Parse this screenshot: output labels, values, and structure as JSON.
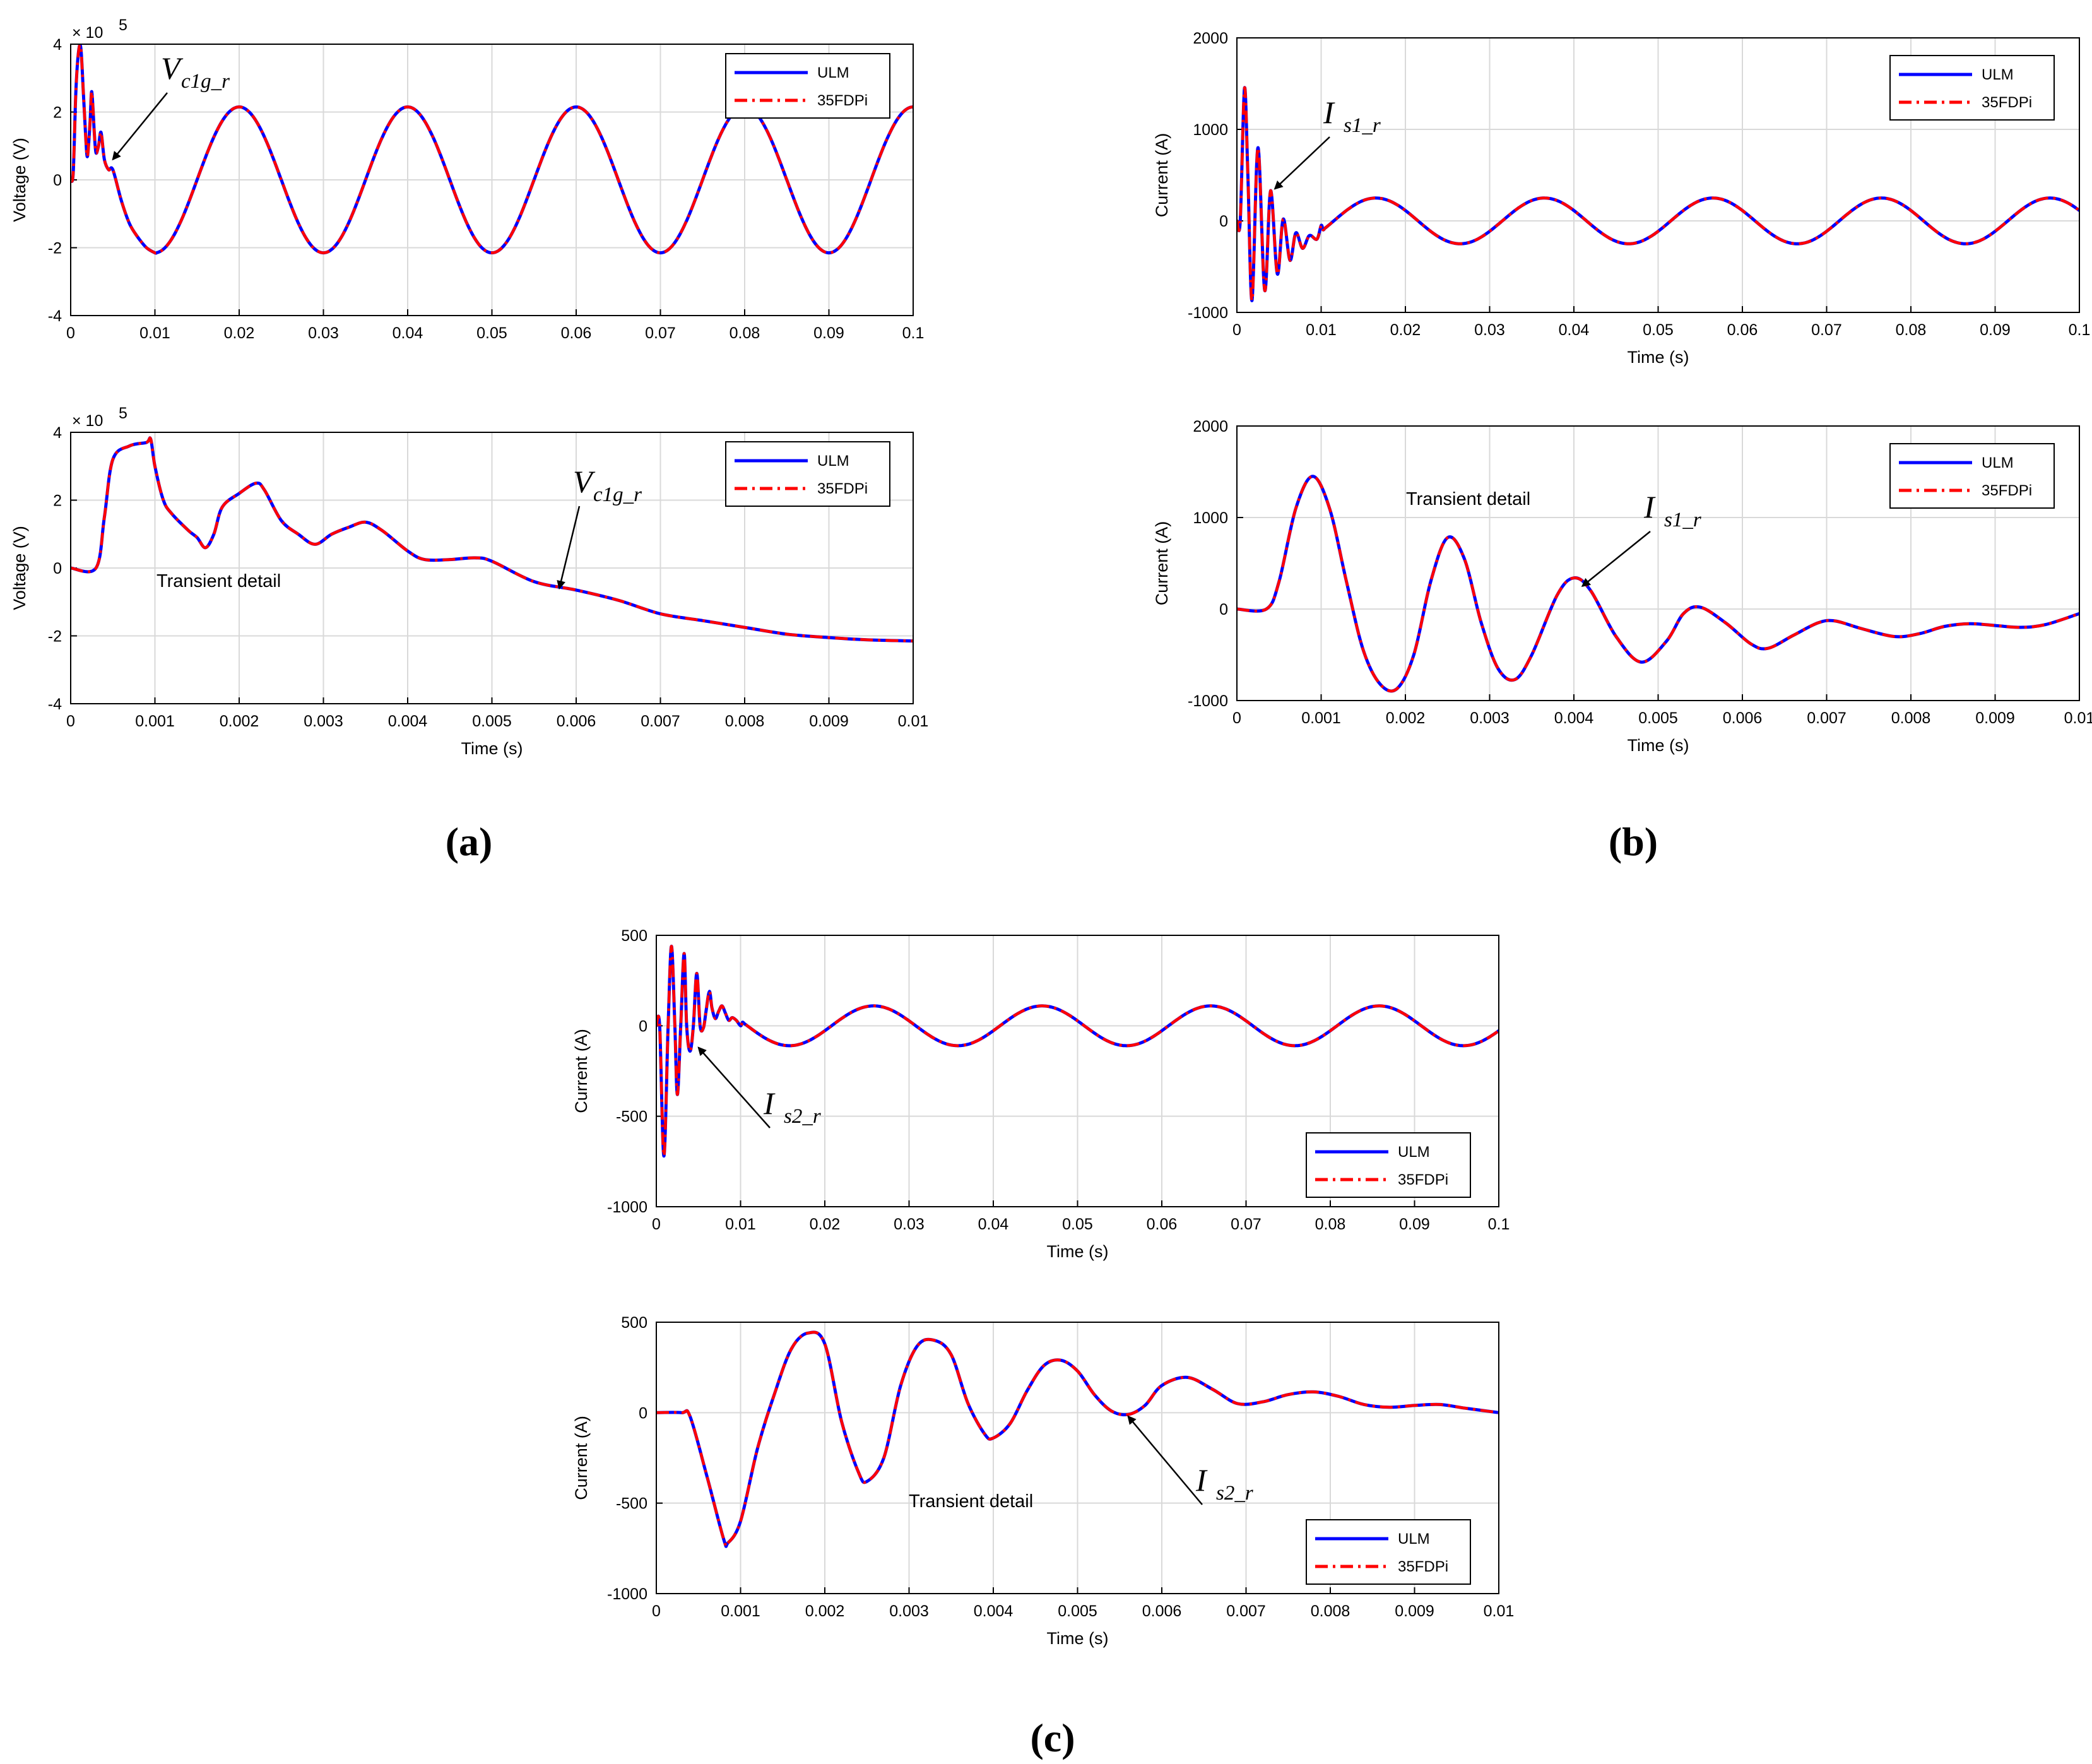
{
  "figure": {
    "panel_labels": [
      "(a)",
      "(b)",
      "(c)"
    ]
  },
  "colors": {
    "ulm": "#0000ff",
    "fdpi": "#ff0000",
    "grid": "#d9d9d9",
    "axis": "#000000"
  },
  "legend": {
    "series": [
      "ULM",
      "35FDPi"
    ]
  },
  "chart_data": [
    {
      "id": "a-top",
      "type": "line",
      "panel": "(a)",
      "title": "",
      "xlabel": "",
      "ylabel": "Voltage (V)",
      "y_exponent": "5",
      "xlim": [
        0,
        0.1
      ],
      "ylim": [
        -4,
        4
      ],
      "xticks": [
        "0",
        "0.01",
        "0.02",
        "0.03",
        "0.04",
        "0.05",
        "0.06",
        "0.07",
        "0.08",
        "0.09",
        "0.1"
      ],
      "yticks": [
        "-4",
        "-2",
        "0",
        "2",
        "4"
      ],
      "series": [
        {
          "name": "ULM",
          "style": "solid",
          "points": [
            [
              0,
              0
            ],
            [
              0.0003,
              0.2
            ],
            [
              0.0006,
              2.5
            ],
            [
              0.0009,
              3.7
            ],
            [
              0.0012,
              3.9
            ],
            [
              0.0015,
              2.6
            ],
            [
              0.0018,
              1.2
            ],
            [
              0.002,
              0.7
            ],
            [
              0.0023,
              1.7
            ],
            [
              0.0025,
              2.6
            ],
            [
              0.0028,
              1.4
            ],
            [
              0.003,
              0.8
            ],
            [
              0.0033,
              1.0
            ],
            [
              0.0036,
              1.4
            ],
            [
              0.004,
              0.6
            ],
            [
              0.0045,
              0.3
            ],
            [
              0.005,
              0.3
            ],
            [
              0.006,
              -0.6
            ],
            [
              0.007,
              -1.3
            ],
            [
              0.008,
              -1.7
            ],
            [
              0.009,
              -2.0
            ],
            [
              0.01,
              -2.15
            ]
          ],
          "sine": {
            "from": 0.01,
            "to": 0.1,
            "amp": 2.15,
            "period": 0.02,
            "phase_at": 0.02,
            "peak_at": 0.02
          }
        },
        {
          "name": "35FDPi",
          "style": "dashdot",
          "same_as": "ULM"
        }
      ],
      "annotation": {
        "main": "V",
        "sub": "c1g_r",
        "x": 0.005,
        "y": 0.6
      }
    },
    {
      "id": "a-bottom",
      "type": "line",
      "panel": "(a)",
      "title": "",
      "xlabel": "Time (s)",
      "ylabel": "Voltage (V)",
      "y_exponent": "5",
      "xlim": [
        0,
        0.01
      ],
      "ylim": [
        -4,
        4
      ],
      "xticks": [
        "0",
        "0.001",
        "0.002",
        "0.003",
        "0.004",
        "0.005",
        "0.006",
        "0.007",
        "0.008",
        "0.009",
        "0.01"
      ],
      "yticks": [
        "-4",
        "-2",
        "0",
        "2",
        "4"
      ],
      "series": [
        {
          "name": "ULM",
          "style": "solid",
          "points": [
            [
              0,
              0
            ],
            [
              0.0003,
              0
            ],
            [
              0.0004,
              1.5
            ],
            [
              0.0005,
              3.2
            ],
            [
              0.0007,
              3.6
            ],
            [
              0.0009,
              3.7
            ],
            [
              0.00095,
              3.8
            ],
            [
              0.001,
              3.0
            ],
            [
              0.0011,
              2.0
            ],
            [
              0.0012,
              1.6
            ],
            [
              0.0014,
              1.1
            ],
            [
              0.0015,
              0.9
            ],
            [
              0.0016,
              0.6
            ],
            [
              0.0017,
              1.0
            ],
            [
              0.0018,
              1.8
            ],
            [
              0.002,
              2.2
            ],
            [
              0.0022,
              2.5
            ],
            [
              0.0023,
              2.3
            ],
            [
              0.0025,
              1.4
            ],
            [
              0.0027,
              1.0
            ],
            [
              0.0029,
              0.7
            ],
            [
              0.0031,
              1.0
            ],
            [
              0.0033,
              1.2
            ],
            [
              0.0035,
              1.35
            ],
            [
              0.0037,
              1.1
            ],
            [
              0.004,
              0.5
            ],
            [
              0.0042,
              0.25
            ],
            [
              0.0045,
              0.25
            ],
            [
              0.0048,
              0.3
            ],
            [
              0.005,
              0.2
            ],
            [
              0.0055,
              -0.4
            ],
            [
              0.006,
              -0.65
            ],
            [
              0.0065,
              -0.95
            ],
            [
              0.007,
              -1.35
            ],
            [
              0.0075,
              -1.55
            ],
            [
              0.008,
              -1.75
            ],
            [
              0.0085,
              -1.95
            ],
            [
              0.009,
              -2.05
            ],
            [
              0.0095,
              -2.12
            ],
            [
              0.01,
              -2.15
            ]
          ]
        },
        {
          "name": "35FDPi",
          "style": "dashdot",
          "same_as": "ULM"
        }
      ],
      "annotation": {
        "main": "V",
        "sub": "c1g_r",
        "x": 0.0058,
        "y": -0.6
      },
      "note": "Transient detail"
    },
    {
      "id": "b-top",
      "type": "line",
      "panel": "(b)",
      "title": "",
      "xlabel": "Time (s)",
      "ylabel": "Current (A)",
      "xlim": [
        0,
        0.1
      ],
      "ylim": [
        -1000,
        2000
      ],
      "xticks": [
        "0",
        "0.01",
        "0.02",
        "0.03",
        "0.04",
        "0.05",
        "0.06",
        "0.07",
        "0.08",
        "0.09",
        "0.1"
      ],
      "yticks": [
        "-1000",
        "0",
        "1000",
        "2000"
      ],
      "series": [
        {
          "name": "ULM",
          "style": "solid",
          "points": [
            [
              0,
              0
            ],
            [
              0.0004,
              0
            ],
            [
              0.0009,
              1450
            ],
            [
              0.0013,
              500
            ],
            [
              0.0018,
              -870
            ],
            [
              0.0025,
              800
            ],
            [
              0.0033,
              -760
            ],
            [
              0.004,
              330
            ],
            [
              0.0048,
              -580
            ],
            [
              0.0055,
              20
            ],
            [
              0.0063,
              -430
            ],
            [
              0.007,
              -130
            ],
            [
              0.0078,
              -300
            ],
            [
              0.0086,
              -160
            ],
            [
              0.0095,
              -200
            ],
            [
              0.01,
              -50
            ]
          ],
          "sine": {
            "from": 0.01,
            "to": 0.1,
            "amp": 250,
            "period": 0.02,
            "peak_at": 0.0165
          }
        },
        {
          "name": "35FDPi",
          "style": "dashdot",
          "same_as": "ULM"
        }
      ],
      "annotation": {
        "main": "I",
        "sub": "s1_r",
        "x": 0.0045,
        "y": 350
      }
    },
    {
      "id": "b-bottom",
      "type": "line",
      "panel": "(b)",
      "title": "",
      "xlabel": "Time (s)",
      "ylabel": "Current (A)",
      "xlim": [
        0,
        0.01
      ],
      "ylim": [
        -1000,
        2000
      ],
      "xticks": [
        "0",
        "0.001",
        "0.002",
        "0.003",
        "0.004",
        "0.005",
        "0.006",
        "0.007",
        "0.008",
        "0.009",
        "0.01"
      ],
      "yticks": [
        "-1000",
        "0",
        "1000",
        "2000"
      ],
      "series": [
        {
          "name": "ULM",
          "style": "solid",
          "points": [
            [
              0,
              0
            ],
            [
              0.00035,
              0
            ],
            [
              0.0005,
              300
            ],
            [
              0.0007,
              1100
            ],
            [
              0.0009,
              1450
            ],
            [
              0.0011,
              1100
            ],
            [
              0.0013,
              300
            ],
            [
              0.0015,
              -450
            ],
            [
              0.0017,
              -820
            ],
            [
              0.0019,
              -870
            ],
            [
              0.0021,
              -500
            ],
            [
              0.0023,
              300
            ],
            [
              0.0025,
              780
            ],
            [
              0.0027,
              550
            ],
            [
              0.0029,
              -150
            ],
            [
              0.0031,
              -650
            ],
            [
              0.0033,
              -770
            ],
            [
              0.0035,
              -500
            ],
            [
              0.0038,
              150
            ],
            [
              0.004,
              340
            ],
            [
              0.0042,
              200
            ],
            [
              0.0045,
              -300
            ],
            [
              0.0048,
              -580
            ],
            [
              0.0051,
              -350
            ],
            [
              0.0053,
              -50
            ],
            [
              0.0055,
              20
            ],
            [
              0.0058,
              -150
            ],
            [
              0.0061,
              -380
            ],
            [
              0.0063,
              -430
            ],
            [
              0.0066,
              -290
            ],
            [
              0.0069,
              -150
            ],
            [
              0.0071,
              -130
            ],
            [
              0.0074,
              -210
            ],
            [
              0.0078,
              -300
            ],
            [
              0.0081,
              -270
            ],
            [
              0.0084,
              -190
            ],
            [
              0.0087,
              -160
            ],
            [
              0.009,
              -180
            ],
            [
              0.0093,
              -200
            ],
            [
              0.0096,
              -170
            ],
            [
              0.01,
              -50
            ]
          ]
        },
        {
          "name": "35FDPi",
          "style": "dashdot",
          "same_as": "ULM"
        }
      ],
      "annotation": {
        "main": "I",
        "sub": "s1_r",
        "x": 0.0041,
        "y": 250
      },
      "note": "Transient detail"
    },
    {
      "id": "c-top",
      "type": "line",
      "panel": "(c)",
      "title": "",
      "xlabel": "Time (s)",
      "ylabel": "Current (A)",
      "xlim": [
        0,
        0.1
      ],
      "ylim": [
        -1000,
        500
      ],
      "xticks": [
        "0",
        "0.01",
        "0.02",
        "0.03",
        "0.04",
        "0.05",
        "0.06",
        "0.07",
        "0.08",
        "0.09",
        "0.1"
      ],
      "yticks": [
        "-1000",
        "-500",
        "0",
        "500"
      ],
      "series": [
        {
          "name": "ULM",
          "style": "solid",
          "points": [
            [
              0,
              0
            ],
            [
              0.0004,
              0
            ],
            [
              0.0009,
              -720
            ],
            [
              0.0014,
              0
            ],
            [
              0.0018,
              440
            ],
            [
              0.0022,
              0
            ],
            [
              0.0025,
              -380
            ],
            [
              0.0029,
              0
            ],
            [
              0.0033,
              400
            ],
            [
              0.0036,
              0
            ],
            [
              0.004,
              -140
            ],
            [
              0.0044,
              0
            ],
            [
              0.0048,
              290
            ],
            [
              0.0052,
              0
            ],
            [
              0.0056,
              -10
            ],
            [
              0.0059,
              80
            ],
            [
              0.0063,
              190
            ],
            [
              0.0066,
              100
            ],
            [
              0.007,
              40
            ],
            [
              0.0074,
              80
            ],
            [
              0.0078,
              110
            ],
            [
              0.0082,
              70
            ],
            [
              0.0086,
              30
            ],
            [
              0.009,
              45
            ],
            [
              0.0095,
              30
            ],
            [
              0.01,
              0
            ]
          ],
          "sine": {
            "from": 0.01,
            "to": 0.1,
            "amp": 110,
            "period": 0.02,
            "peak_at": 0.0258
          }
        },
        {
          "name": "35FDPi",
          "style": "dashdot",
          "same_as": "ULM"
        }
      ],
      "annotation": {
        "main": "I",
        "sub": "s2_r",
        "x": 0.005,
        "y": -120
      }
    },
    {
      "id": "c-bottom",
      "type": "line",
      "panel": "(c)",
      "title": "",
      "xlabel": "Time (s)",
      "ylabel": "Current (A)",
      "xlim": [
        0,
        0.01
      ],
      "ylim": [
        -1000,
        500
      ],
      "xticks": [
        "0",
        "0.001",
        "0.002",
        "0.003",
        "0.004",
        "0.005",
        "0.006",
        "0.007",
        "0.008",
        "0.009",
        "0.01"
      ],
      "yticks": [
        "-1000",
        "-500",
        "0",
        "500"
      ],
      "series": [
        {
          "name": "ULM",
          "style": "solid",
          "points": [
            [
              0,
              0
            ],
            [
              0.0003,
              0
            ],
            [
              0.0004,
              -20
            ],
            [
              0.0006,
              -350
            ],
            [
              0.0008,
              -700
            ],
            [
              0.00085,
              -720
            ],
            [
              0.001,
              -600
            ],
            [
              0.0012,
              -200
            ],
            [
              0.0014,
              100
            ],
            [
              0.0016,
              350
            ],
            [
              0.0018,
              440
            ],
            [
              0.002,
              380
            ],
            [
              0.0022,
              -50
            ],
            [
              0.0024,
              -330
            ],
            [
              0.0025,
              -380
            ],
            [
              0.0027,
              -250
            ],
            [
              0.0029,
              150
            ],
            [
              0.0031,
              370
            ],
            [
              0.0033,
              400
            ],
            [
              0.0035,
              320
            ],
            [
              0.0037,
              50
            ],
            [
              0.0039,
              -120
            ],
            [
              0.004,
              -140
            ],
            [
              0.0042,
              -60
            ],
            [
              0.0044,
              120
            ],
            [
              0.0046,
              260
            ],
            [
              0.0048,
              290
            ],
            [
              0.005,
              230
            ],
            [
              0.0052,
              100
            ],
            [
              0.0054,
              10
            ],
            [
              0.0056,
              -10
            ],
            [
              0.0058,
              40
            ],
            [
              0.006,
              150
            ],
            [
              0.0063,
              195
            ],
            [
              0.0066,
              130
            ],
            [
              0.0069,
              50
            ],
            [
              0.0072,
              60
            ],
            [
              0.0075,
              100
            ],
            [
              0.0078,
              115
            ],
            [
              0.0081,
              90
            ],
            [
              0.0084,
              45
            ],
            [
              0.0087,
              30
            ],
            [
              0.009,
              40
            ],
            [
              0.0093,
              45
            ],
            [
              0.0096,
              25
            ],
            [
              0.01,
              0
            ]
          ]
        },
        {
          "name": "35FDPi",
          "style": "dashdot",
          "same_as": "ULM"
        }
      ],
      "annotation": {
        "main": "I",
        "sub": "s2_r",
        "x": 0.0056,
        "y": -20
      },
      "note": "Transient detail"
    }
  ]
}
